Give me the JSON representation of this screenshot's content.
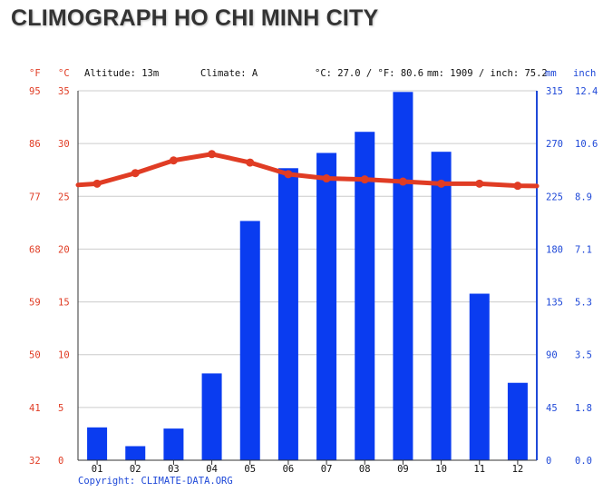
{
  "title": "CLIMOGRAPH HO CHI MINH CITY",
  "header": {
    "unit_f": "°F",
    "unit_c": "°C",
    "altitude": "Altitude: 13m",
    "climate": "Climate: A",
    "temp_summary": "°C: 27.0 / °F: 80.6",
    "precip_summary": "mm: 1909 / inch: 75.2",
    "unit_mm": "mm",
    "unit_inch": "inch"
  },
  "copyright": "Copyright: CLIMATE-DATA.ORG",
  "colors": {
    "temperature": "#e03c24",
    "precipitation": "#0a3cf0",
    "axis_left": "#e03c24",
    "axis_right": "#1f49d8",
    "grid": "#cccccc"
  },
  "chart_data": {
    "type": "bar",
    "categories": [
      "01",
      "02",
      "03",
      "04",
      "05",
      "06",
      "07",
      "08",
      "09",
      "10",
      "11",
      "12"
    ],
    "series": [
      {
        "name": "Precipitation (mm)",
        "type": "bar",
        "axis": "right",
        "values": [
          28,
          12,
          27,
          74,
          204,
          249,
          262,
          280,
          314,
          263,
          142,
          66
        ]
      },
      {
        "name": "Temperature (°C)",
        "type": "line",
        "axis": "left",
        "values": [
          26.2,
          27.2,
          28.4,
          29.0,
          28.2,
          27.1,
          26.7,
          26.6,
          26.4,
          26.2,
          26.2,
          26.0
        ]
      }
    ],
    "ylim_left": [
      0,
      35
    ],
    "ylim_right": [
      0,
      315
    ],
    "left_axis_c_ticks": [
      "0",
      "5",
      "10",
      "15",
      "20",
      "25",
      "30",
      "35"
    ],
    "left_axis_f_ticks": [
      "32",
      "41",
      "50",
      "59",
      "68",
      "77",
      "86",
      "95"
    ],
    "right_axis_mm_ticks": [
      "0",
      "45",
      "90",
      "135",
      "180",
      "225",
      "270",
      "315"
    ],
    "right_axis_inch_ticks": [
      "0.0",
      "1.8",
      "3.5",
      "5.3",
      "7.1",
      "8.9",
      "10.6",
      "12.4"
    ]
  }
}
